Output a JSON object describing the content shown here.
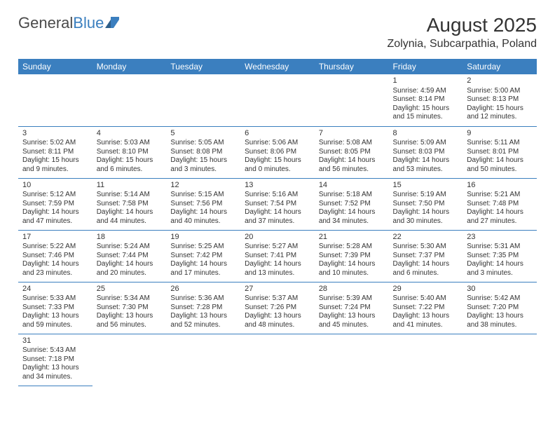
{
  "logo": {
    "part1": "General",
    "part2": "Blue"
  },
  "title": "August 2025",
  "location": "Zolynia, Subcarpathia, Poland",
  "colors": {
    "header_bg": "#3b7fbf",
    "header_fg": "#ffffff",
    "border": "#3b7fbf",
    "text": "#333333"
  },
  "weekdays": [
    "Sunday",
    "Monday",
    "Tuesday",
    "Wednesday",
    "Thursday",
    "Friday",
    "Saturday"
  ],
  "weeks": [
    [
      null,
      null,
      null,
      null,
      null,
      {
        "n": "1",
        "sr": "Sunrise: 4:59 AM",
        "ss": "Sunset: 8:14 PM",
        "d1": "Daylight: 15 hours",
        "d2": "and 15 minutes."
      },
      {
        "n": "2",
        "sr": "Sunrise: 5:00 AM",
        "ss": "Sunset: 8:13 PM",
        "d1": "Daylight: 15 hours",
        "d2": "and 12 minutes."
      }
    ],
    [
      {
        "n": "3",
        "sr": "Sunrise: 5:02 AM",
        "ss": "Sunset: 8:11 PM",
        "d1": "Daylight: 15 hours",
        "d2": "and 9 minutes."
      },
      {
        "n": "4",
        "sr": "Sunrise: 5:03 AM",
        "ss": "Sunset: 8:10 PM",
        "d1": "Daylight: 15 hours",
        "d2": "and 6 minutes."
      },
      {
        "n": "5",
        "sr": "Sunrise: 5:05 AM",
        "ss": "Sunset: 8:08 PM",
        "d1": "Daylight: 15 hours",
        "d2": "and 3 minutes."
      },
      {
        "n": "6",
        "sr": "Sunrise: 5:06 AM",
        "ss": "Sunset: 8:06 PM",
        "d1": "Daylight: 15 hours",
        "d2": "and 0 minutes."
      },
      {
        "n": "7",
        "sr": "Sunrise: 5:08 AM",
        "ss": "Sunset: 8:05 PM",
        "d1": "Daylight: 14 hours",
        "d2": "and 56 minutes."
      },
      {
        "n": "8",
        "sr": "Sunrise: 5:09 AM",
        "ss": "Sunset: 8:03 PM",
        "d1": "Daylight: 14 hours",
        "d2": "and 53 minutes."
      },
      {
        "n": "9",
        "sr": "Sunrise: 5:11 AM",
        "ss": "Sunset: 8:01 PM",
        "d1": "Daylight: 14 hours",
        "d2": "and 50 minutes."
      }
    ],
    [
      {
        "n": "10",
        "sr": "Sunrise: 5:12 AM",
        "ss": "Sunset: 7:59 PM",
        "d1": "Daylight: 14 hours",
        "d2": "and 47 minutes."
      },
      {
        "n": "11",
        "sr": "Sunrise: 5:14 AM",
        "ss": "Sunset: 7:58 PM",
        "d1": "Daylight: 14 hours",
        "d2": "and 44 minutes."
      },
      {
        "n": "12",
        "sr": "Sunrise: 5:15 AM",
        "ss": "Sunset: 7:56 PM",
        "d1": "Daylight: 14 hours",
        "d2": "and 40 minutes."
      },
      {
        "n": "13",
        "sr": "Sunrise: 5:16 AM",
        "ss": "Sunset: 7:54 PM",
        "d1": "Daylight: 14 hours",
        "d2": "and 37 minutes."
      },
      {
        "n": "14",
        "sr": "Sunrise: 5:18 AM",
        "ss": "Sunset: 7:52 PM",
        "d1": "Daylight: 14 hours",
        "d2": "and 34 minutes."
      },
      {
        "n": "15",
        "sr": "Sunrise: 5:19 AM",
        "ss": "Sunset: 7:50 PM",
        "d1": "Daylight: 14 hours",
        "d2": "and 30 minutes."
      },
      {
        "n": "16",
        "sr": "Sunrise: 5:21 AM",
        "ss": "Sunset: 7:48 PM",
        "d1": "Daylight: 14 hours",
        "d2": "and 27 minutes."
      }
    ],
    [
      {
        "n": "17",
        "sr": "Sunrise: 5:22 AM",
        "ss": "Sunset: 7:46 PM",
        "d1": "Daylight: 14 hours",
        "d2": "and 23 minutes."
      },
      {
        "n": "18",
        "sr": "Sunrise: 5:24 AM",
        "ss": "Sunset: 7:44 PM",
        "d1": "Daylight: 14 hours",
        "d2": "and 20 minutes."
      },
      {
        "n": "19",
        "sr": "Sunrise: 5:25 AM",
        "ss": "Sunset: 7:42 PM",
        "d1": "Daylight: 14 hours",
        "d2": "and 17 minutes."
      },
      {
        "n": "20",
        "sr": "Sunrise: 5:27 AM",
        "ss": "Sunset: 7:41 PM",
        "d1": "Daylight: 14 hours",
        "d2": "and 13 minutes."
      },
      {
        "n": "21",
        "sr": "Sunrise: 5:28 AM",
        "ss": "Sunset: 7:39 PM",
        "d1": "Daylight: 14 hours",
        "d2": "and 10 minutes."
      },
      {
        "n": "22",
        "sr": "Sunrise: 5:30 AM",
        "ss": "Sunset: 7:37 PM",
        "d1": "Daylight: 14 hours",
        "d2": "and 6 minutes."
      },
      {
        "n": "23",
        "sr": "Sunrise: 5:31 AM",
        "ss": "Sunset: 7:35 PM",
        "d1": "Daylight: 14 hours",
        "d2": "and 3 minutes."
      }
    ],
    [
      {
        "n": "24",
        "sr": "Sunrise: 5:33 AM",
        "ss": "Sunset: 7:33 PM",
        "d1": "Daylight: 13 hours",
        "d2": "and 59 minutes."
      },
      {
        "n": "25",
        "sr": "Sunrise: 5:34 AM",
        "ss": "Sunset: 7:30 PM",
        "d1": "Daylight: 13 hours",
        "d2": "and 56 minutes."
      },
      {
        "n": "26",
        "sr": "Sunrise: 5:36 AM",
        "ss": "Sunset: 7:28 PM",
        "d1": "Daylight: 13 hours",
        "d2": "and 52 minutes."
      },
      {
        "n": "27",
        "sr": "Sunrise: 5:37 AM",
        "ss": "Sunset: 7:26 PM",
        "d1": "Daylight: 13 hours",
        "d2": "and 48 minutes."
      },
      {
        "n": "28",
        "sr": "Sunrise: 5:39 AM",
        "ss": "Sunset: 7:24 PM",
        "d1": "Daylight: 13 hours",
        "d2": "and 45 minutes."
      },
      {
        "n": "29",
        "sr": "Sunrise: 5:40 AM",
        "ss": "Sunset: 7:22 PM",
        "d1": "Daylight: 13 hours",
        "d2": "and 41 minutes."
      },
      {
        "n": "30",
        "sr": "Sunrise: 5:42 AM",
        "ss": "Sunset: 7:20 PM",
        "d1": "Daylight: 13 hours",
        "d2": "and 38 minutes."
      }
    ],
    [
      {
        "n": "31",
        "sr": "Sunrise: 5:43 AM",
        "ss": "Sunset: 7:18 PM",
        "d1": "Daylight: 13 hours",
        "d2": "and 34 minutes."
      },
      null,
      null,
      null,
      null,
      null,
      null
    ]
  ]
}
